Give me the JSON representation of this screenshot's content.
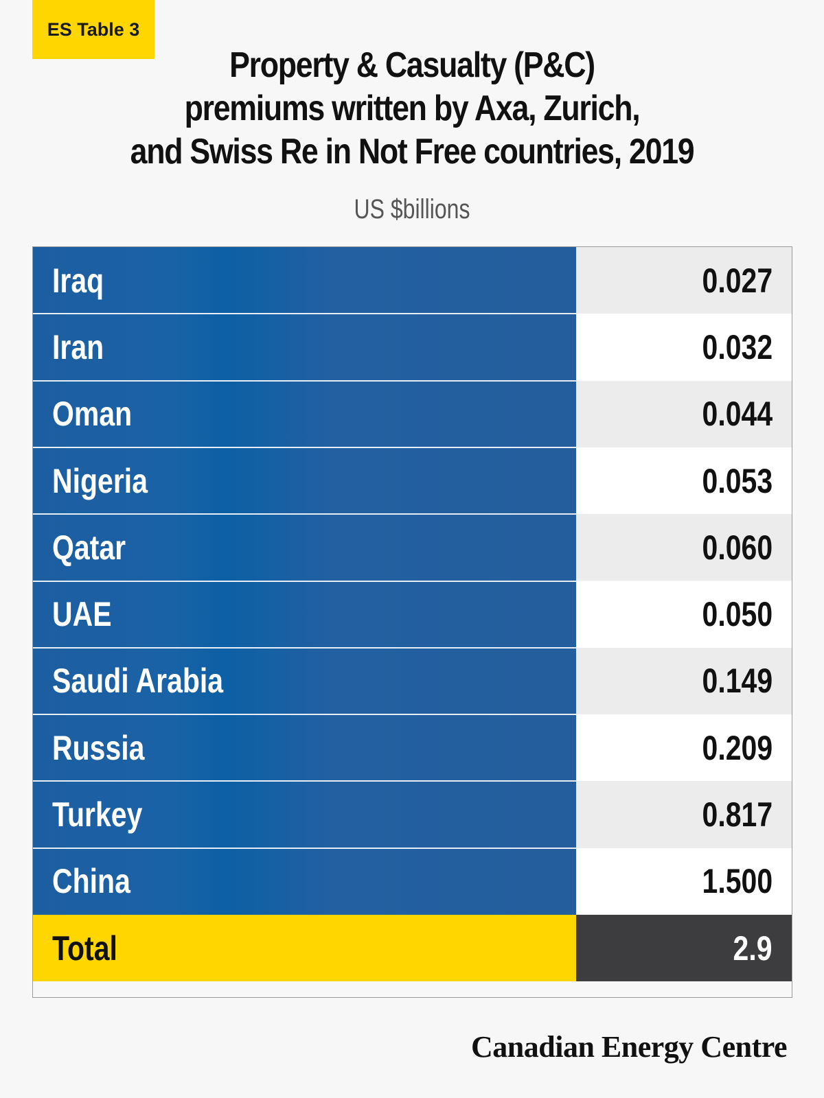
{
  "tag": "ES Table 3",
  "chart_data": {
    "type": "table",
    "title_lines": [
      "Property & Casualty (P&C)",
      "premiums written by Axa, Zurich,",
      "and Swiss Re in Not Free countries, 2019"
    ],
    "subtitle": "US $billions",
    "rows": [
      {
        "label": "Iraq",
        "value": "0.027"
      },
      {
        "label": "Iran",
        "value": "0.032"
      },
      {
        "label": "Oman",
        "value": "0.044"
      },
      {
        "label": "Nigeria",
        "value": "0.053"
      },
      {
        "label": "Qatar",
        "value": "0.060"
      },
      {
        "label": "UAE",
        "value": "0.050"
      },
      {
        "label": "Saudi Arabia",
        "value": "0.149"
      },
      {
        "label": "Russia",
        "value": "0.209"
      },
      {
        "label": "Turkey",
        "value": "0.817"
      },
      {
        "label": "China",
        "value": "1.500"
      }
    ],
    "total": {
      "label": "Total",
      "value": "2.9"
    }
  },
  "colors": {
    "label_background": "#1d5ea0",
    "total_label_background": "#ffd600",
    "total_value_background": "#3d3d3f",
    "tag_background": "#ffd600"
  },
  "footer": "Canadian Energy Centre"
}
